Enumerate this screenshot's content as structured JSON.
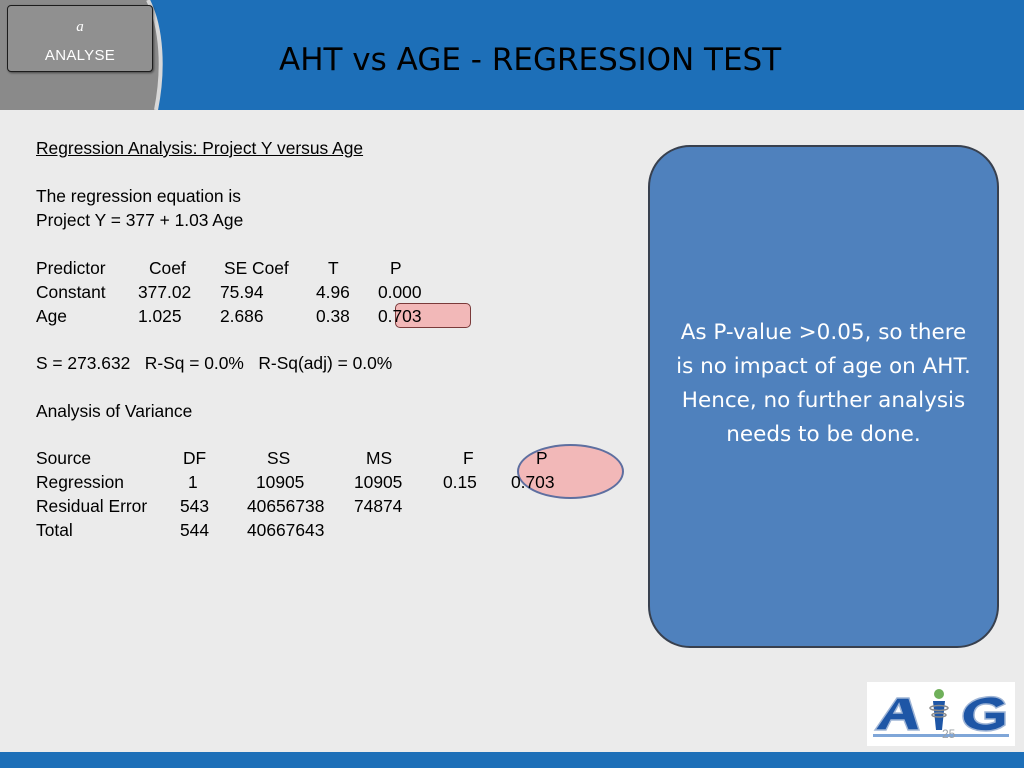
{
  "header": {
    "phase_letter": "a",
    "phase_label": "ANALYSE",
    "title": "AHT vs AGE - REGRESSION TEST"
  },
  "output": {
    "heading": "Regression Analysis: Project Y versus Age",
    "equation_intro": "The regression equation is",
    "equation": "Project Y = 377 + 1.03 Age",
    "coef_table": {
      "headers": [
        "Predictor",
        "Coef",
        "SE Coef",
        "T",
        "P"
      ],
      "rows": [
        [
          "Constant",
          "377.02",
          "75.94",
          "4.96",
          "0.000"
        ],
        [
          "Age",
          "1.025",
          "2.686",
          "0.38",
          "0.703"
        ]
      ]
    },
    "summary": "S = 273.632   R-Sq = 0.0%   R-Sq(adj) = 0.0%",
    "anova_heading": "Analysis of Variance",
    "anova_table": {
      "headers": [
        "Source",
        "DF",
        "SS",
        "MS",
        "F",
        "P"
      ],
      "rows": [
        [
          "Regression",
          "1",
          "10905",
          "10905",
          "0.15",
          "0.703"
        ],
        [
          "Residual Error",
          "543",
          "40656738",
          "74874",
          "",
          ""
        ],
        [
          "Total",
          "544",
          "40667643",
          "",
          "",
          ""
        ]
      ]
    }
  },
  "callout": {
    "text": "As P-value >0.05, so there is no impact of age on AHT. Hence, no further analysis needs to be done."
  },
  "footer": {
    "logo_text": "AIG",
    "page_number": "25"
  },
  "colors": {
    "header_blue": "#1d6fb8",
    "header_grey": "#8a8a8a",
    "callout_fill": "#4f81bd",
    "highlight_fill": "#f2b8b8",
    "background": "#ebebeb"
  }
}
